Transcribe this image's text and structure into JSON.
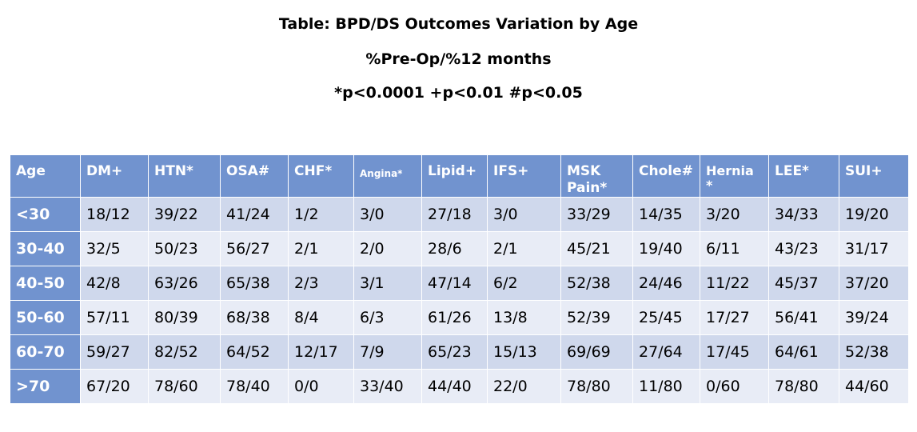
{
  "title": "Table: BPD/DS Outcomes Variation by Age",
  "subtitle": "%Pre-Op/%12 months",
  "significance_legend": "*p<0.0001  +p<0.01   #p<0.05",
  "columns": [
    "Age",
    "DM+",
    "HTN*",
    "OSA#",
    "CHF*",
    "Angina*",
    "Lipid+",
    "IFS+",
    "MSK Pain*",
    "Chole#",
    "Hernia *",
    "LEE*",
    "SUI+"
  ],
  "rows": [
    {
      "age": "<30",
      "values": [
        "18/12",
        "39/22",
        "41/24",
        "1/2",
        "3/0",
        "27/18",
        "3/0",
        "33/29",
        "14/35",
        "3/20",
        "34/33",
        "19/20"
      ]
    },
    {
      "age": "30-40",
      "values": [
        "32/5",
        "50/23",
        "56/27",
        "2/1",
        "2/0",
        "28/6",
        "2/1",
        "45/21",
        "19/40",
        "6/11",
        "43/23",
        "31/17"
      ]
    },
    {
      "age": "40-50",
      "values": [
        "42/8",
        "63/26",
        "65/38",
        "2/3",
        "3/1",
        "47/14",
        "6/2",
        "52/38",
        "24/46",
        "11/22",
        "45/37",
        "37/20"
      ]
    },
    {
      "age": "50-60",
      "values": [
        "57/11",
        "80/39",
        "68/38",
        "8/4",
        "6/3",
        "61/26",
        "13/8",
        "52/39",
        "25/45",
        "17/27",
        "56/41",
        "39/24"
      ]
    },
    {
      "age": "60-70",
      "values": [
        "59/27",
        "82/52",
        "64/52",
        "12/17",
        "7/9",
        "65/23",
        "15/13",
        "69/69",
        "27/64",
        "17/45",
        "64/61",
        "52/38"
      ]
    },
    {
      "age": ">70",
      "values": [
        "67/20",
        "78/60",
        "78/40",
        "0/0",
        "33/40",
        "44/40",
        "22/0",
        "78/80",
        "11/80",
        "0/60",
        "78/80",
        "44/60"
      ]
    }
  ],
  "colors": {
    "header_fill": "#7193cf",
    "row_band_dark": "#cfd8ec",
    "row_band_light": "#e8ecf6"
  }
}
